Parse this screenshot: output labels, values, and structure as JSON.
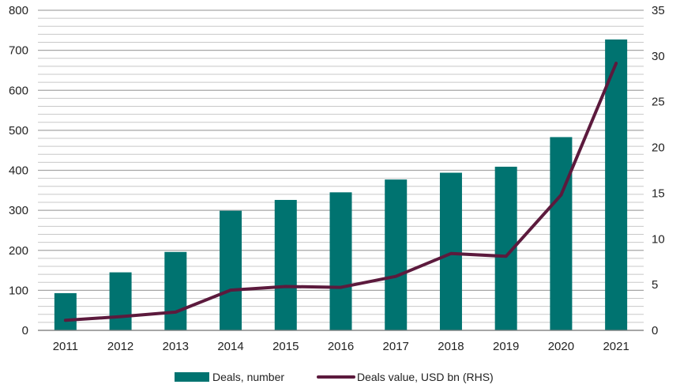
{
  "chart_data": {
    "type": "bar",
    "title": "",
    "xlabel": "",
    "ylabel": "",
    "categories": [
      "2011",
      "2012",
      "2013",
      "2014",
      "2015",
      "2016",
      "2017",
      "2018",
      "2019",
      "2020",
      "2021"
    ],
    "series": [
      {
        "name": "Deals, number",
        "type": "bar",
        "axis": "left",
        "color": "#007370",
        "values": [
          93,
          145,
          196,
          299,
          326,
          345,
          377,
          394,
          409,
          483,
          727
        ]
      },
      {
        "name": "Deals value, USD bn (RHS)",
        "type": "line",
        "axis": "right",
        "color": "#5c1a3d",
        "values": [
          1.1,
          1.5,
          2.0,
          4.4,
          4.8,
          4.7,
          5.9,
          8.4,
          8.1,
          14.8,
          29.2
        ]
      }
    ],
    "y_left": {
      "ylim": [
        0,
        800
      ],
      "ticks": [
        "0",
        "100",
        "200",
        "300",
        "400",
        "500",
        "600",
        "700",
        "800"
      ]
    },
    "y_right": {
      "ylim": [
        0,
        35
      ],
      "ticks": [
        "0",
        "5",
        "10",
        "15",
        "20",
        "25",
        "30",
        "35"
      ]
    },
    "grid": true,
    "legend_position": "bottom-center"
  }
}
